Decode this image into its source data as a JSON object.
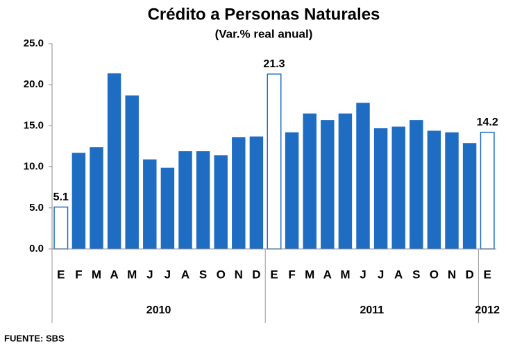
{
  "chart_data": {
    "type": "bar",
    "title": "Crédito a Personas Naturales",
    "subtitle": "(Var.% real anual)",
    "source": "FUENTE: SBS",
    "categories": [
      "E",
      "F",
      "M",
      "A",
      "M",
      "J",
      "J",
      "A",
      "S",
      "O",
      "N",
      "D",
      "E",
      "F",
      "M",
      "A",
      "M",
      "J",
      "J",
      "A",
      "S",
      "O",
      "N",
      "D",
      "E"
    ],
    "values": [
      5.1,
      11.7,
      12.4,
      21.4,
      18.7,
      10.9,
      9.9,
      11.9,
      11.9,
      11.4,
      13.6,
      13.7,
      21.3,
      14.2,
      16.5,
      15.7,
      16.5,
      17.8,
      14.7,
      14.9,
      15.7,
      14.4,
      14.2,
      12.9,
      14.2
    ],
    "value_labels": [
      "5.1",
      null,
      null,
      null,
      null,
      null,
      null,
      null,
      null,
      null,
      null,
      null,
      "21.3",
      null,
      null,
      null,
      null,
      null,
      null,
      null,
      null,
      null,
      null,
      null,
      "14.2"
    ],
    "colors": [
      "#ffffff",
      "#1f6dc2",
      "#1f6dc2",
      "#1f6dc2",
      "#1f6dc2",
      "#1f6dc2",
      "#1f6dc2",
      "#1f6dc2",
      "#1f6dc2",
      "#1f6dc2",
      "#1f6dc2",
      "#1f6dc2",
      "#ffffff",
      "#1f6dc2",
      "#1f6dc2",
      "#1f6dc2",
      "#1f6dc2",
      "#1f6dc2",
      "#1f6dc2",
      "#1f6dc2",
      "#1f6dc2",
      "#1f6dc2",
      "#1f6dc2",
      "#1f6dc2",
      "#ffffff"
    ],
    "edge_color": "#1f6dc2",
    "groups": [
      {
        "name": "2010",
        "count": 12
      },
      {
        "name": "2011",
        "count": 12
      },
      {
        "name": "2012",
        "count": 1
      }
    ],
    "ylim": [
      0,
      25
    ],
    "yticks": [
      {
        "value": 0,
        "label": "0.0"
      },
      {
        "value": 5,
        "label": "5.0"
      },
      {
        "value": 10,
        "label": "10.0"
      },
      {
        "value": 15,
        "label": "15.0"
      },
      {
        "value": 20,
        "label": "20.0"
      },
      {
        "value": 25,
        "label": "25.0"
      }
    ],
    "grid": false
  }
}
